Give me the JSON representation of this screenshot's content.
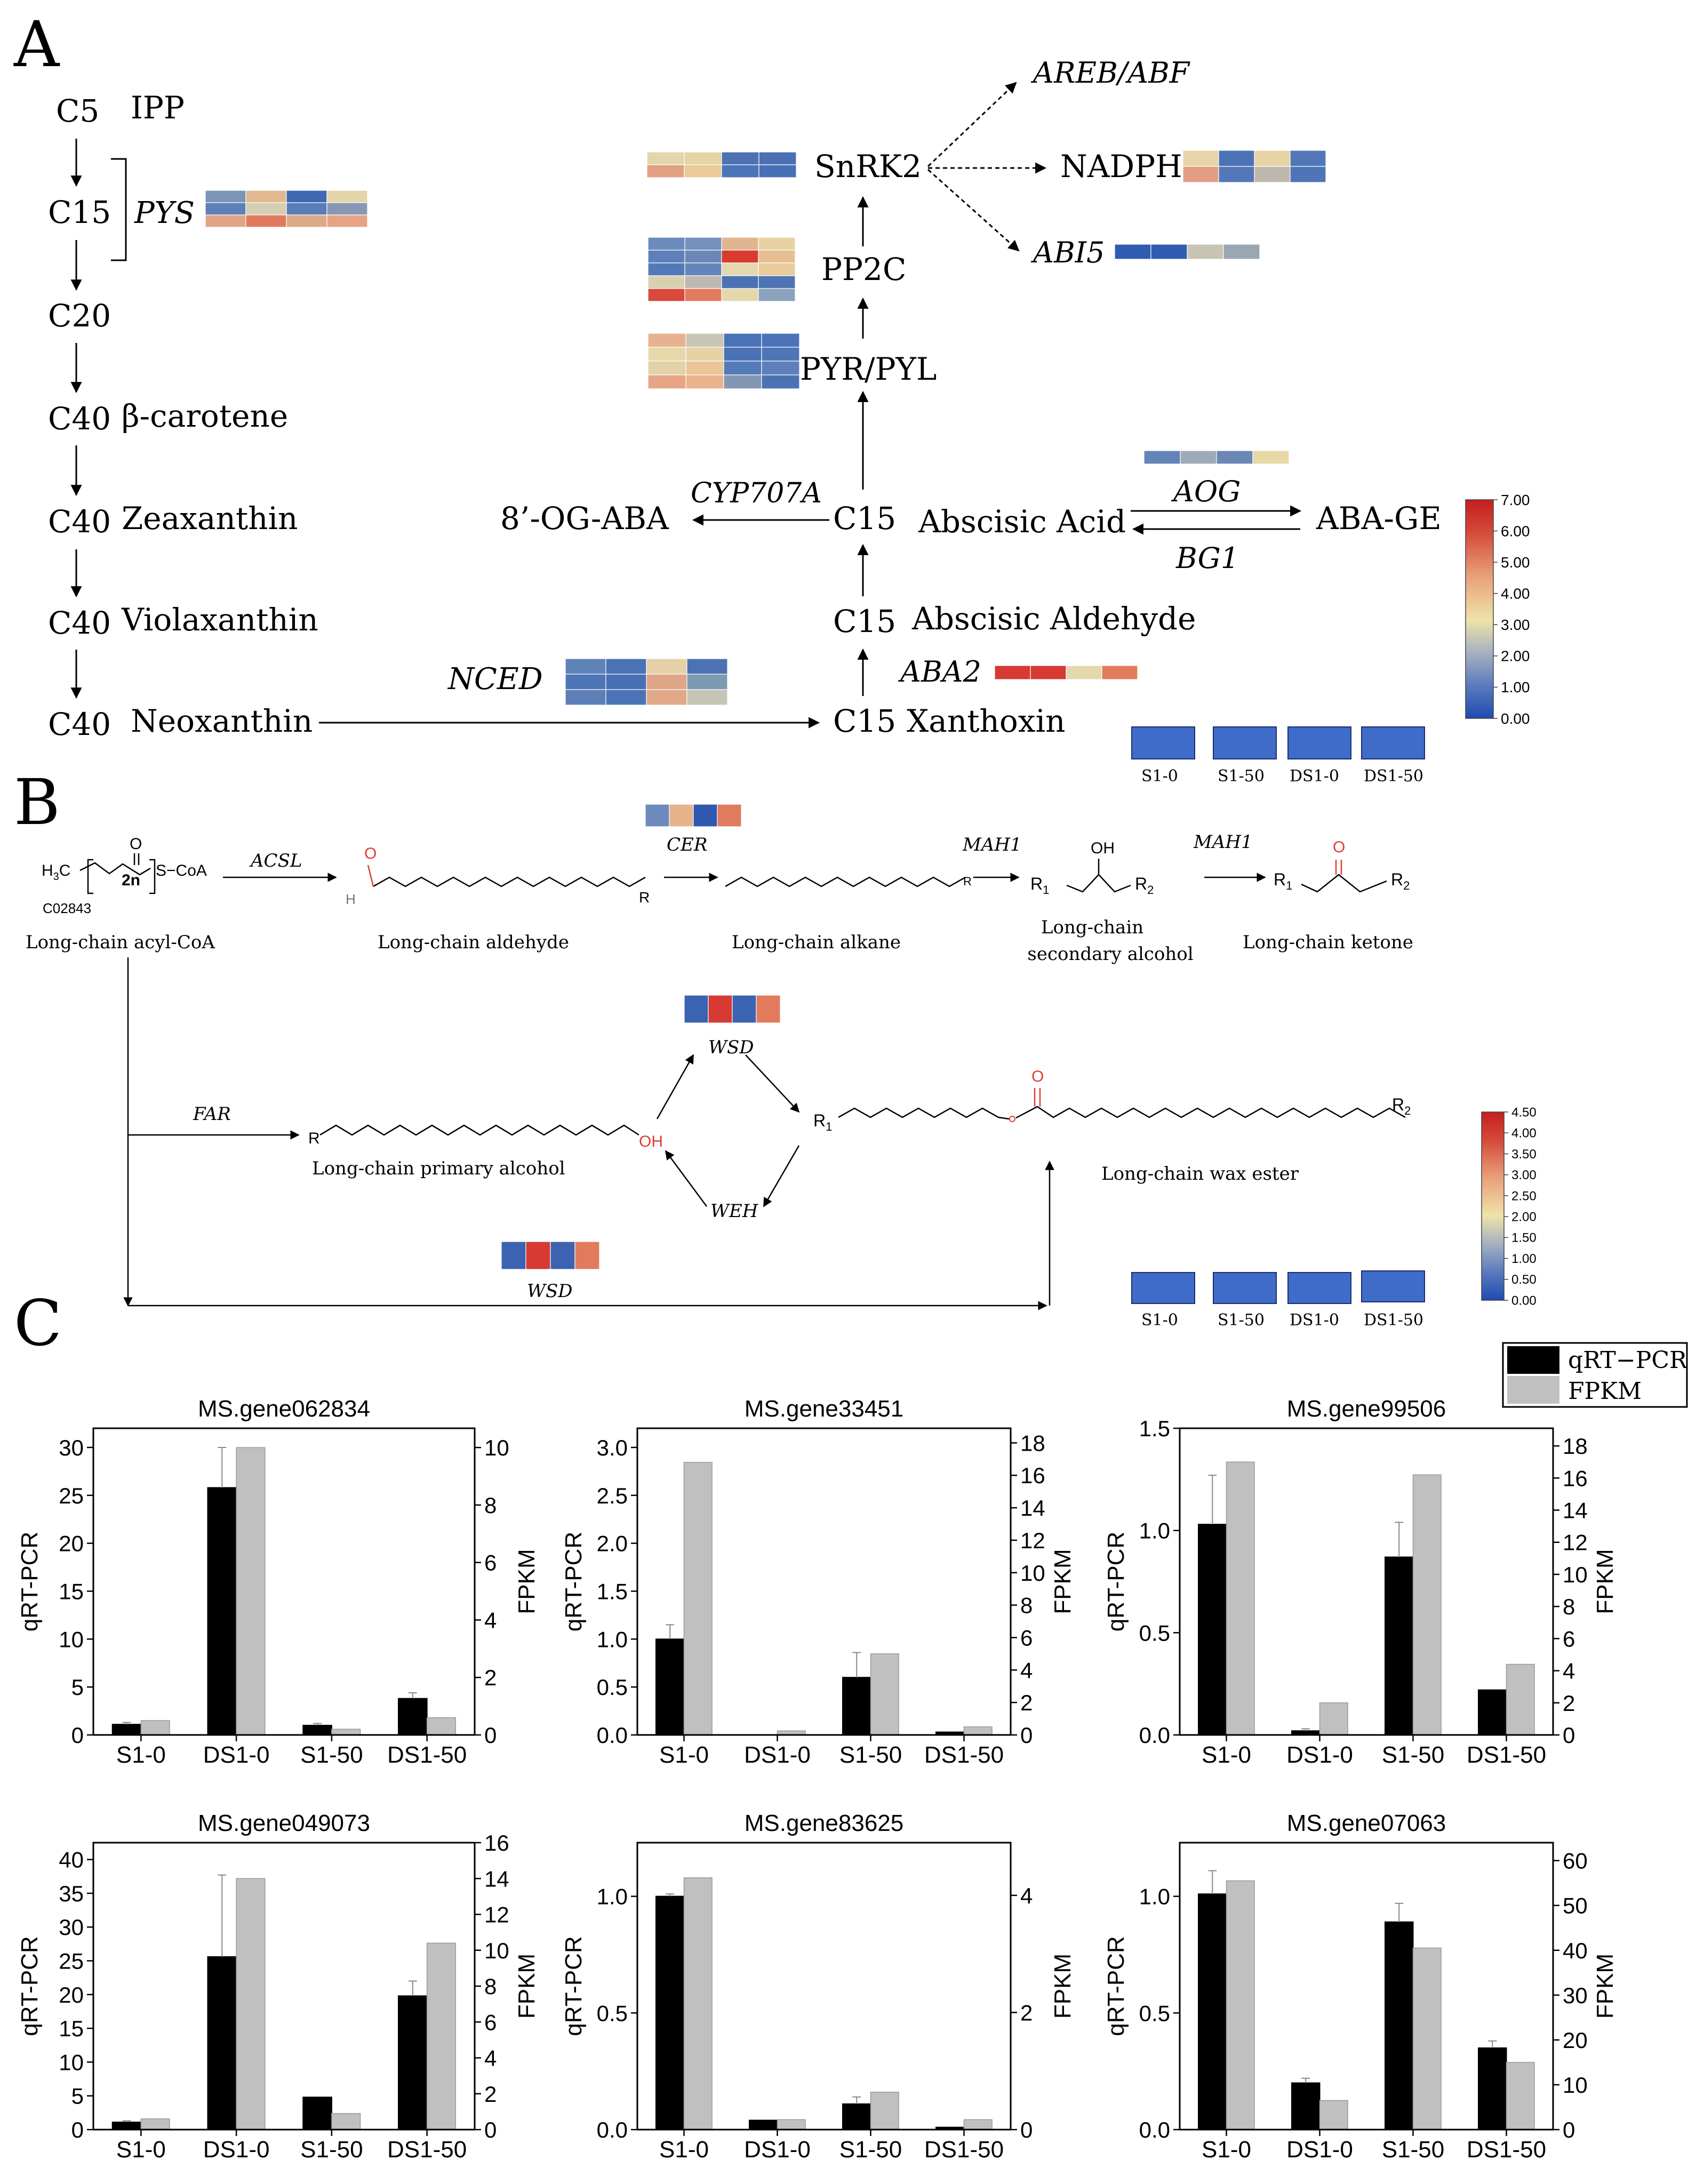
{
  "panels": {
    "a": "A",
    "b": "B",
    "c": "C"
  },
  "pathway_a": {
    "precursors": [
      {
        "carbon": "C5",
        "name": "IPP"
      },
      {
        "carbon": "C15",
        "name": ""
      },
      {
        "carbon": "C20",
        "name": ""
      },
      {
        "carbon": "C40",
        "name": "β-carotene"
      },
      {
        "carbon": "C40",
        "name": "Zeaxanthin"
      },
      {
        "carbon": "C40",
        "name": "Violaxanthin"
      },
      {
        "carbon": "C40",
        "name": "Neoxanthin"
      }
    ],
    "pys": "PYS",
    "nced": "NCED",
    "xanthoxin": {
      "carbon": "C15",
      "name": "Xanthoxin"
    },
    "aba2": "ABA2",
    "abscisic_aldehyde": {
      "carbon": "C15",
      "name": "Abscisic Aldehyde"
    },
    "aba": {
      "carbon": "C15",
      "name": "Abscisic Acid"
    },
    "cyp707a": "CYP707A",
    "og_aba": "8’-OG-ABA",
    "aog": "AOG",
    "bg1": "BG1",
    "aba_ge": "ABA-GE",
    "pyr": "PYR/PYL",
    "pp2c": "PP2C",
    "snrk2": "SnRK2",
    "areb": "AREB/ABF",
    "nadph": "NADPH",
    "abi5": "ABI5"
  },
  "colorbar_a": {
    "ticks": [
      "7.00",
      "6.00",
      "5.00",
      "4.00",
      "3.00",
      "2.00",
      "1.00",
      "0.00"
    ]
  },
  "legend_a": [
    "S1-0",
    "S1-50",
    "DS1-0",
    "DS1-50"
  ],
  "pathway_b": {
    "acyl_coa_formula": {
      "h3c": "H",
      "sub3": "3",
      "c": "C",
      "repeat": "2n",
      "scoa": "S−CoA",
      "o": "O"
    },
    "compound_id": "C02843",
    "acyl_coa": "Long-chain acyl-CoA",
    "acsl": "ACSL",
    "aldehyde": "Long-chain aldehyde",
    "aldehyde_h": "H",
    "aldehyde_o": "O",
    "r": "R",
    "cer": "CER",
    "alkane": "Long-chain alkane",
    "mah1": "MAH1",
    "sec_alcohol": [
      "Long-chain",
      "secondary alcohol"
    ],
    "ketone": "Long-chain ketone",
    "r1": "R",
    "r2": "R",
    "sub1": "1",
    "sub2": "2",
    "oh": "OH",
    "far": "FAR",
    "primary_alcohol": "Long-chain primary alcohol",
    "wsd": "WSD",
    "weh": "WEH",
    "wax_ester": "Long-chain wax ester"
  },
  "colorbar_b": {
    "ticks": [
      "4.50",
      "4.00",
      "3.50",
      "3.00",
      "2.50",
      "2.00",
      "1.50",
      "1.00",
      "0.50",
      "0.00"
    ]
  },
  "legend_b": [
    "S1-0",
    "S1-50",
    "DS1-0",
    "DS1-50"
  ],
  "legend_c": {
    "qrt": "qRT−PCR",
    "fpkm": "FPKM"
  },
  "chart_data": [
    {
      "type": "bar",
      "title": "MS.gene062834",
      "categories": [
        "S1-0",
        "DS1-0",
        "S1-50",
        "DS1-50"
      ],
      "ylabel": "qRT-PCR",
      "y2label": "FPKM",
      "ylim": [
        0,
        32
      ],
      "yticks": [
        0,
        5,
        10,
        15,
        20,
        25,
        30
      ],
      "y2lim": [
        0,
        10.67
      ],
      "y2ticks": [
        0,
        2,
        4,
        6,
        8,
        10
      ],
      "series": [
        {
          "name": "qRT-PCR",
          "axis": "left",
          "values": [
            1.1,
            25.8,
            1.0,
            3.8
          ],
          "errors": [
            0.2,
            4.2,
            0.2,
            0.6
          ]
        },
        {
          "name": "FPKM",
          "axis": "right",
          "values": [
            0.5,
            10.0,
            0.2,
            0.6
          ]
        }
      ]
    },
    {
      "type": "bar",
      "title": "MS.gene33451",
      "categories": [
        "S1-0",
        "DS1-0",
        "S1-50",
        "DS1-50"
      ],
      "ylabel": "qRT-PCR",
      "y2label": "FPKM",
      "ylim": [
        0,
        3.2
      ],
      "yticks": [
        "0.0",
        "0.5",
        "1.0",
        "1.5",
        "2.0",
        "2.5",
        "3.0"
      ],
      "y2lim": [
        0,
        18.9
      ],
      "y2ticks": [
        0,
        2,
        4,
        6,
        8,
        10,
        12,
        14,
        16,
        18
      ],
      "series": [
        {
          "name": "qRT-PCR",
          "axis": "left",
          "values": [
            1.0,
            0.0,
            0.6,
            0.03
          ],
          "errors": [
            0.15,
            0.0,
            0.26,
            0.0
          ]
        },
        {
          "name": "FPKM",
          "axis": "right",
          "values": [
            16.8,
            0.25,
            5.0,
            0.5
          ]
        }
      ]
    },
    {
      "type": "bar",
      "title": "MS.gene99506",
      "categories": [
        "S1-0",
        "DS1-0",
        "S1-50",
        "DS1-50"
      ],
      "ylabel": "qRT-PCR",
      "y2label": "FPKM",
      "ylim": [
        0,
        1.5
      ],
      "yticks": [
        "0.0",
        "0.5",
        "1.0",
        "1.5"
      ],
      "y2lim": [
        0,
        19.1
      ],
      "y2ticks": [
        0,
        2,
        4,
        6,
        8,
        10,
        12,
        14,
        16,
        18
      ],
      "series": [
        {
          "name": "qRT-PCR",
          "axis": "left",
          "values": [
            1.03,
            0.02,
            0.87,
            0.22
          ],
          "errors": [
            0.24,
            0.01,
            0.17,
            0.0
          ]
        },
        {
          "name": "FPKM",
          "axis": "right",
          "values": [
            17.0,
            2.0,
            16.2,
            4.4
          ]
        }
      ]
    },
    {
      "type": "bar",
      "title": "MS.gene049073",
      "categories": [
        "S1-0",
        "DS1-0",
        "S1-50",
        "DS1-50"
      ],
      "ylabel": "qRT-PCR",
      "y2label": "FPKM",
      "ylim": [
        0,
        42.5
      ],
      "yticks": [
        0,
        5,
        10,
        15,
        20,
        25,
        30,
        35,
        40
      ],
      "y2lim": [
        0,
        16
      ],
      "y2ticks": [
        0,
        2,
        4,
        6,
        8,
        10,
        12,
        14,
        16
      ],
      "series": [
        {
          "name": "qRT-PCR",
          "axis": "left",
          "values": [
            1.1,
            25.6,
            4.8,
            19.8
          ],
          "errors": [
            0.2,
            12.1,
            0.0,
            2.2
          ]
        },
        {
          "name": "FPKM",
          "axis": "right",
          "values": [
            0.6,
            14.0,
            0.9,
            10.4
          ]
        }
      ]
    },
    {
      "type": "bar",
      "title": "MS.gene83625",
      "categories": [
        "S1-0",
        "DS1-0",
        "S1-50",
        "DS1-50"
      ],
      "ylabel": "qRT-PCR",
      "y2label": "FPKM",
      "ylim": [
        0,
        1.23
      ],
      "yticks": [
        "0.0",
        "0.5",
        "1.0"
      ],
      "y2lim": [
        0,
        4.9
      ],
      "y2ticks": [
        0,
        2,
        4
      ],
      "series": [
        {
          "name": "qRT-PCR",
          "axis": "left",
          "values": [
            1.0,
            0.04,
            0.11,
            0.01
          ],
          "errors": [
            0.01,
            0.0,
            0.03,
            0.0
          ]
        },
        {
          "name": "FPKM",
          "axis": "right",
          "values": [
            4.3,
            0.17,
            0.64,
            0.17
          ]
        }
      ]
    },
    {
      "type": "bar",
      "title": "MS.gene07063",
      "categories": [
        "S1-0",
        "DS1-0",
        "S1-50",
        "DS1-50"
      ],
      "ylabel": "qRT-PCR",
      "y2label": "FPKM",
      "ylim": [
        0,
        1.23
      ],
      "yticks": [
        "0.0",
        "0.5",
        "1.0"
      ],
      "y2lim": [
        0,
        64
      ],
      "y2ticks": [
        0,
        10,
        20,
        30,
        40,
        50,
        60
      ],
      "series": [
        {
          "name": "qRT-PCR",
          "axis": "left",
          "values": [
            1.01,
            0.2,
            0.89,
            0.35
          ],
          "errors": [
            0.1,
            0.02,
            0.08,
            0.03
          ]
        },
        {
          "name": "FPKM",
          "axis": "right",
          "values": [
            55.5,
            6.5,
            40.5,
            15.0
          ]
        }
      ]
    }
  ],
  "heatmaps": {
    "pys": [
      [
        "#7B95B8",
        "#E0B991",
        "#3F68B4",
        "#E2D6A8"
      ],
      [
        "#5D80B6",
        "#D4CFB2",
        "#5A7CB8",
        "#8698B4"
      ],
      [
        "#E0A586",
        "#E07A5E",
        "#DDAA87",
        "#E7A385"
      ]
    ],
    "nced": [
      [
        "#5F82B8",
        "#4A72B5",
        "#E4D1A7",
        "#4C72B2"
      ],
      [
        "#4E76B6",
        "#4870B6",
        "#E0A587",
        "#7E9AB2"
      ],
      [
        "#5C7FB8",
        "#4B73B6",
        "#E2A988",
        "#C6C4B4"
      ]
    ],
    "snrk2": [
      [
        "#E2D6AA",
        "#E4D4A6",
        "#4D72B3",
        "#4B71B4"
      ],
      [
        "#E2A184",
        "#E8CB99",
        "#4B74B9",
        "#4870B8"
      ]
    ],
    "pp2c": [
      [
        "#6C8ABC",
        "#7591BC",
        "#E1B58F",
        "#E8D2A4"
      ],
      [
        "#5E80BA",
        "#6A87B6",
        "#D93B31",
        "#E6BF94"
      ],
      [
        "#5479B8",
        "#6485BB",
        "#E4D8AE",
        "#E9CB9C"
      ],
      [
        "#DACFB0",
        "#BDB9B0",
        "#4C72B4",
        "#4F74B5"
      ],
      [
        "#D9493C",
        "#E17A5E",
        "#E5D7AB",
        "#8AA2BC"
      ]
    ],
    "pyr": [
      [
        "#E7B28F",
        "#C9C5B3",
        "#4A72B6",
        "#4C73B7"
      ],
      [
        "#E7D8AA",
        "#E5D3A6",
        "#4B72B5",
        "#4E75B6"
      ],
      [
        "#E3D1A8",
        "#EBC497",
        "#557AB8",
        "#5E80BA"
      ],
      [
        "#E7A586",
        "#E9B48D",
        "#8497B2",
        "#4B72B4"
      ]
    ],
    "nadph": [
      [
        "#E7D4A8",
        "#4B73B6",
        "#E7D3A6",
        "#5277B9"
      ],
      [
        "#E39E82",
        "#5477B7",
        "#BEB7AC",
        "#4E75B8"
      ]
    ],
    "abi5": [
      [
        "#2F5CB0",
        "#2F5CB0",
        "#C8C4B4",
        "#9AA7B2"
      ]
    ],
    "aog": [
      [
        "#6384B6",
        "#9EAAB8",
        "#6B87B6",
        "#E7D9A7"
      ]
    ],
    "aba2": [
      [
        "#D63A33",
        "#D63A33",
        "#E5D8AE",
        "#E27B5E"
      ]
    ],
    "cer": [
      [
        "#6C8ABC",
        "#E5B48C",
        "#3058B0",
        "#E07B5E"
      ]
    ],
    "wsd_top": [
      [
        "#3B63B2",
        "#D63A33",
        "#3B63B2",
        "#E27B5E"
      ]
    ],
    "wsd_bottom": [
      [
        "#3B63B2",
        "#D63A33",
        "#3B63B2",
        "#E27B5E"
      ]
    ]
  }
}
